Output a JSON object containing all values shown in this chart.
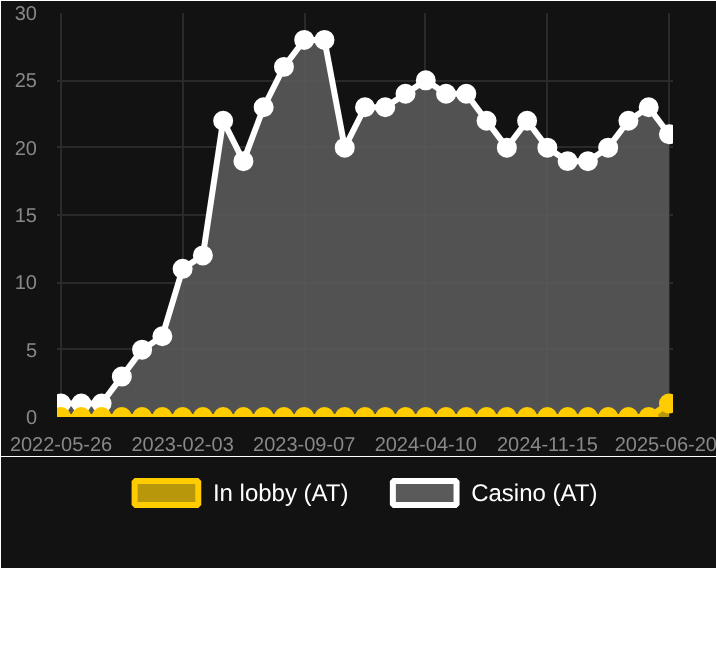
{
  "chart_data": {
    "type": "area",
    "categories": [
      "2022-05-26",
      null,
      null,
      null,
      null,
      null,
      "2023-02-03",
      null,
      null,
      null,
      null,
      null,
      "2023-09-07",
      null,
      null,
      null,
      null,
      null,
      "2024-04-10",
      null,
      null,
      null,
      null,
      null,
      "2024-11-15",
      null,
      null,
      null,
      null,
      null,
      "2025-06-20"
    ],
    "series": [
      {
        "name": "In lobby (AT)",
        "color": "#ffcc00",
        "values": [
          0,
          0,
          0,
          0,
          0,
          0,
          0,
          0,
          0,
          0,
          0,
          0,
          0,
          0,
          0,
          0,
          0,
          0,
          0,
          0,
          0,
          0,
          0,
          0,
          0,
          0,
          0,
          0,
          0,
          0,
          1
        ]
      },
      {
        "name": "Casino (AT)",
        "color": "#ffffff",
        "values": [
          1,
          1,
          1,
          3,
          5,
          6,
          11,
          12,
          22,
          19,
          23,
          26,
          28,
          28,
          20,
          23,
          23,
          24,
          25,
          24,
          24,
          22,
          20,
          22,
          20,
          19,
          19,
          20,
          22,
          23,
          21
        ]
      }
    ],
    "ylim": [
      0,
      30
    ],
    "yticks": [
      0,
      5,
      10,
      15,
      20,
      25,
      30
    ],
    "grid": true,
    "legend": "bottom",
    "marker": "circle"
  }
}
